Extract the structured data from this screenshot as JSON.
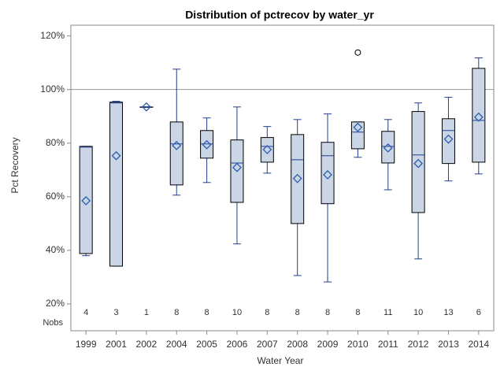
{
  "chart_data": {
    "type": "box",
    "title": "Distribution of pctrecov by water_yr",
    "x_label": "Water Year",
    "y_label": "Pct Recovery",
    "categories": [
      "1999",
      "2001",
      "2002",
      "2004",
      "2005",
      "2006",
      "2007",
      "2008",
      "2009",
      "2010",
      "2011",
      "2012",
      "2013",
      "2014"
    ],
    "min": [
      38,
      34.1,
      93.5,
      60.6,
      65.3,
      42.4,
      68.8,
      30.6,
      28.2,
      74.7,
      62.6,
      36.8,
      65.9,
      68.5
    ],
    "q1": [
      38.8,
      34.1,
      93.5,
      64.4,
      74.4,
      57.9,
      72.9,
      50,
      57.4,
      77.9,
      72.6,
      54.1,
      72.4,
      72.9
    ],
    "median": [
      78.5,
      95,
      93.5,
      79.7,
      79.7,
      72.6,
      78.8,
      73.8,
      75.3,
      84.1,
      78.8,
      75.6,
      84.7,
      88.5
    ],
    "q3": [
      78.8,
      95.3,
      93.5,
      87.9,
      84.7,
      81.2,
      82.1,
      83.2,
      80.3,
      87.9,
      84.4,
      91.8,
      89.1,
      107.9
    ],
    "max": [
      78.8,
      95.6,
      93.5,
      107.6,
      89.4,
      93.5,
      86.2,
      88.8,
      90.9,
      87.9,
      88.8,
      95,
      97.1,
      111.8
    ],
    "mean": [
      58.5,
      75.3,
      93.5,
      79.1,
      79.4,
      70.9,
      77.6,
      66.8,
      68.2,
      85.9,
      78.2,
      72.4,
      81.5,
      89.7
    ],
    "outliers": [
      [],
      [],
      [],
      [],
      [],
      [],
      [],
      [],
      [],
      [
        113.8
      ],
      [],
      [],
      [],
      []
    ],
    "nobs_label": "Nobs",
    "nobs": [
      4,
      3,
      1,
      8,
      8,
      10,
      8,
      8,
      8,
      8,
      11,
      10,
      13,
      6
    ],
    "color": "#cad5e6",
    "line_color": "#1f3f8f",
    "ylim": [
      10,
      124
    ],
    "yticks": [
      {
        "value": 20,
        "label": "20%"
      },
      {
        "value": 40,
        "label": "40%"
      },
      {
        "value": 60,
        "label": "60%"
      },
      {
        "value": 80,
        "label": "80%"
      },
      {
        "value": 100,
        "label": "100%"
      },
      {
        "value": 120,
        "label": "120%"
      }
    ],
    "refline": 100
  }
}
